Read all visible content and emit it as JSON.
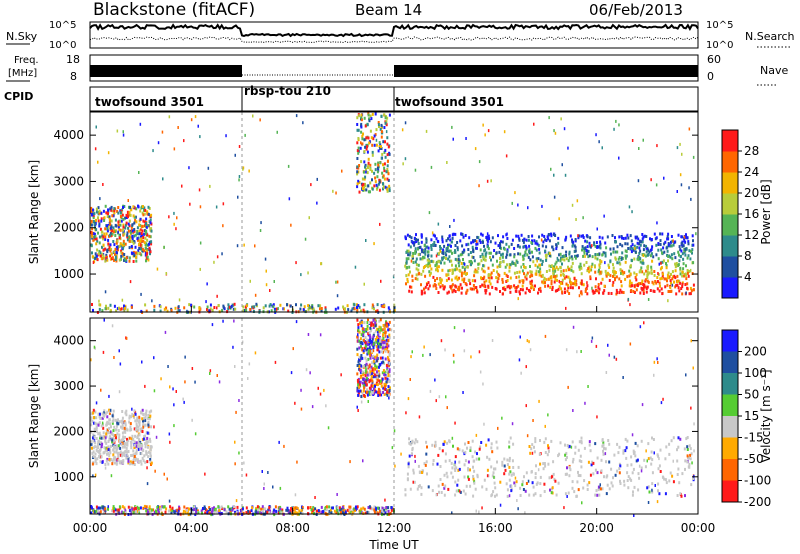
{
  "header": {
    "title": "Blackstone (fitACF)",
    "beam": "Beam 14",
    "date": "06/Feb/2013"
  },
  "nsky_panel": {
    "label": "N.Sky",
    "right_label": "N.Search",
    "tick_top": "10^5",
    "tick_bottom": "10^0",
    "right_tick_top": "10^5",
    "right_tick_bottom": "10^0"
  },
  "freq_panel": {
    "label_line1": "Freq.",
    "label_line2": "[MHz]",
    "tick_top": "18",
    "tick_bottom": "8",
    "right_label": "Nave",
    "right_tick_top": "60",
    "right_tick_bottom": "0"
  },
  "cpid_panel": {
    "label": "CPID",
    "segments": [
      {
        "name": "twofsound 3501",
        "start": "00:00",
        "end": "06:00"
      },
      {
        "name": "rbsp-tou 210",
        "start": "06:00",
        "end": "12:00"
      },
      {
        "name": "twofsound 3501",
        "start": "12:00",
        "end": "24:00"
      }
    ]
  },
  "chart_data": [
    {
      "type": "heatmap",
      "panel": "power",
      "ylabel": "Slant Range [km]",
      "yticks": [
        "1000",
        "2000",
        "3000",
        "4000"
      ],
      "ylim": [
        180,
        4500
      ],
      "colorbar_label": "Power [dB]",
      "colorbar_ticks": [
        "4",
        "8",
        "12",
        "16",
        "20",
        "24",
        "28"
      ],
      "colorbar_colors": [
        "#1a1aff",
        "#1f4fa0",
        "#2e8b8b",
        "#55b455",
        "#b8cc3a",
        "#f2b400",
        "#ff6600",
        "#ff1a1a"
      ],
      "regions": [
        {
          "t_start": 0.0,
          "t_end": 2.4,
          "range_min": 1300,
          "range_max": 2500,
          "level": "mixed"
        },
        {
          "t_start": 12.4,
          "t_end": 23.8,
          "range_min": 600,
          "range_max": 1900,
          "level": "strong"
        },
        {
          "t_start": 0.0,
          "t_end": 12.0,
          "range_min": 200,
          "range_max": 380,
          "level": "weak"
        },
        {
          "t_start": 10.5,
          "t_end": 11.8,
          "range_min": 2800,
          "range_max": 4500,
          "level": "weak"
        }
      ]
    },
    {
      "type": "heatmap",
      "panel": "velocity",
      "ylabel": "Slant Range [km]",
      "yticks": [
        "1000",
        "2000",
        "3000",
        "4000"
      ],
      "ylim": [
        180,
        4500
      ],
      "colorbar_label": "Velocity [m s⁻¹]",
      "colorbar_ticks": [
        "200",
        "100",
        "50",
        "15",
        "-15",
        "-50",
        "-100",
        "-200"
      ],
      "colorbar_colors": [
        "#1a1aff",
        "#1f4fa0",
        "#2e8b8b",
        "#55cc33",
        "#c8c8c8",
        "#ffaa00",
        "#ff6600",
        "#ff1a1a"
      ],
      "regions": [
        {
          "t_start": 0.0,
          "t_end": 2.4,
          "range_min": 1300,
          "range_max": 2500,
          "level": "grey"
        },
        {
          "t_start": 12.4,
          "t_end": 23.8,
          "range_min": 600,
          "range_max": 1900,
          "level": "grey"
        },
        {
          "t_start": 0.0,
          "t_end": 12.0,
          "range_min": 200,
          "range_max": 380,
          "level": "mixed"
        },
        {
          "t_start": 10.5,
          "t_end": 11.8,
          "range_min": 2800,
          "range_max": 4500,
          "level": "mixed"
        }
      ]
    }
  ],
  "x_axis": {
    "label": "Time UT",
    "ticks": [
      "00:00",
      "04:00",
      "08:00",
      "12:00",
      "16:00",
      "20:00",
      "00:00"
    ]
  }
}
